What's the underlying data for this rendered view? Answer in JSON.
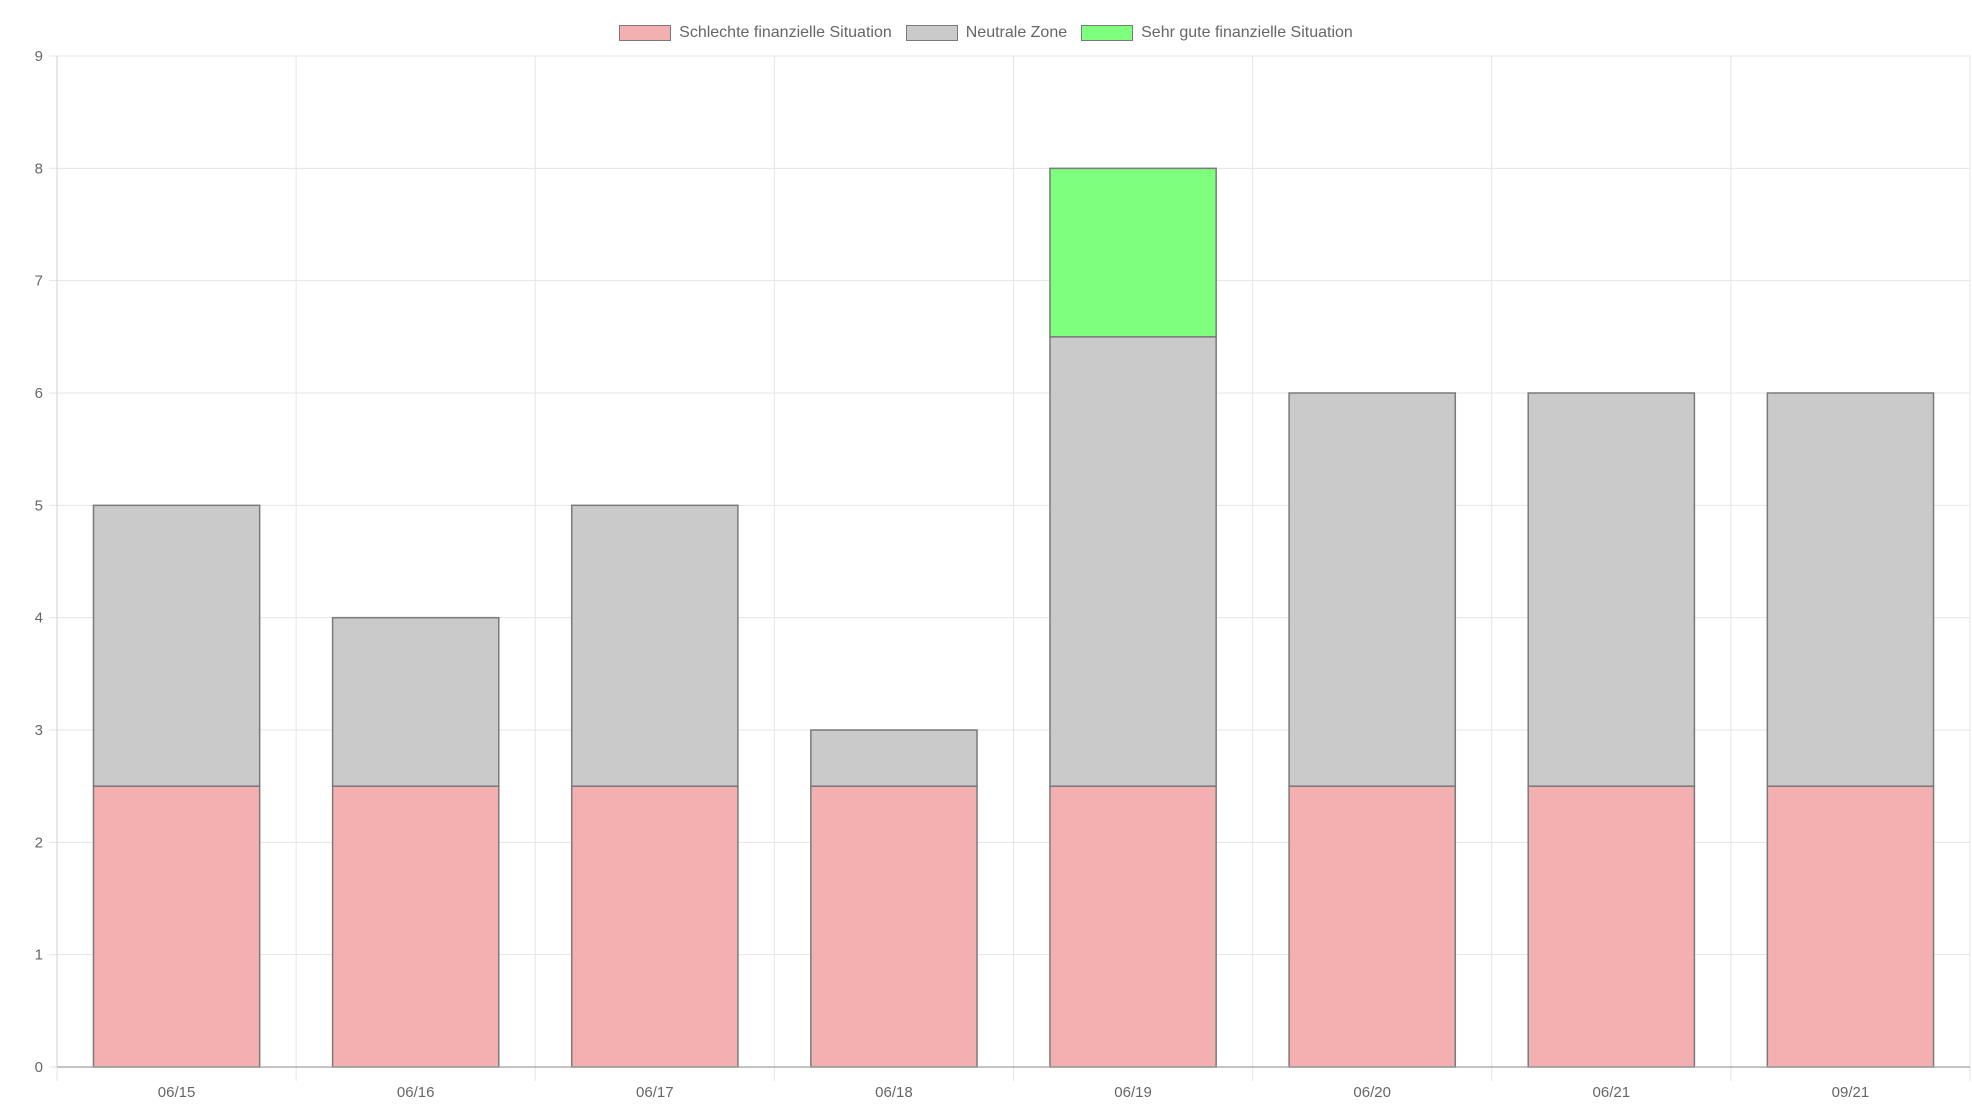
{
  "chart_data": {
    "type": "bar",
    "stacked": true,
    "categories": [
      "06/15",
      "06/16",
      "06/17",
      "06/18",
      "06/19",
      "06/20",
      "06/21",
      "09/21"
    ],
    "series": [
      {
        "name": "Schlechte finanzielle Situation",
        "color": "#f4b0b0",
        "values": [
          2.5,
          2.5,
          2.5,
          2.5,
          2.5,
          2.5,
          2.5,
          2.5
        ]
      },
      {
        "name": "Neutrale Zone",
        "color": "#cacaca",
        "values": [
          2.5,
          1.5,
          2.5,
          0.5,
          4.0,
          3.5,
          3.5,
          3.5
        ]
      },
      {
        "name": "Sehr gute finanzielle Situation",
        "color": "#7eff7e",
        "values": [
          0,
          0,
          0,
          0,
          1.5,
          0,
          0,
          0
        ]
      }
    ],
    "y_ticks": [
      "0",
      "1",
      "2",
      "3",
      "4",
      "5",
      "6",
      "7",
      "8",
      "9"
    ],
    "ylim": [
      0,
      9
    ],
    "grid": true,
    "legend_position": "top",
    "bar_border_color": "#7a7a7a",
    "grid_color": "#e5e5e5"
  }
}
